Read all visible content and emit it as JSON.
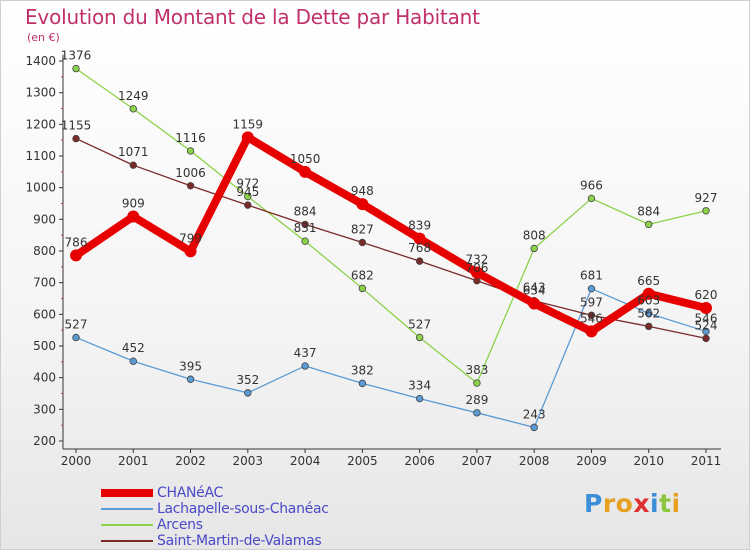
{
  "header": {
    "title": "Evolution du Montant de la Dette par Habitant",
    "unit": "(en €)"
  },
  "colors": {
    "title": "#c0306a",
    "legend_text": "#4a4ac8"
  },
  "logo": {
    "letters": [
      "P",
      "r",
      "o",
      "x",
      "i",
      "t",
      "i"
    ],
    "colors": [
      "#3a8fd8",
      "#e8a020",
      "#e8a020",
      "#e03030",
      "#3a8fd8",
      "#8cc63f",
      "#e8a020"
    ]
  },
  "chart_data": {
    "type": "line",
    "title": "Evolution du Montant de la Dette par Habitant",
    "ylabel": "(en €)",
    "xlabel": "",
    "x": [
      "2000",
      "2001",
      "2002",
      "2003",
      "2004",
      "2005",
      "2006",
      "2007",
      "2008",
      "2009",
      "2010",
      "2011"
    ],
    "yticks": [
      "200",
      "300",
      "400",
      "500",
      "600",
      "700",
      "800",
      "900",
      "1000",
      "1100",
      "1200",
      "1300",
      "1400"
    ],
    "ylim": [
      200,
      1420
    ],
    "grid": false,
    "legend_position": "bottom-left",
    "series": [
      {
        "name": "CHANéAC",
        "color": "#e60000",
        "values": [
          786,
          909,
          799,
          1159,
          1050,
          948,
          839,
          732,
          634,
          546,
          665,
          620
        ],
        "labels": [
          "786",
          "909",
          "799",
          "1159",
          "1050",
          "948",
          "839",
          "732",
          "634",
          "546",
          "665",
          "620"
        ]
      },
      {
        "name": "Lachapelle-sous-Chanéac",
        "color": "#5b9bd5",
        "values": [
          527,
          452,
          395,
          352,
          437,
          382,
          334,
          289,
          243,
          681,
          603,
          546
        ],
        "labels": [
          "527",
          "452",
          "395",
          "352",
          "437",
          "382",
          "334",
          "289",
          "243",
          "681",
          "603",
          "546"
        ]
      },
      {
        "name": "Arcens",
        "color": "#8cd24a",
        "values": [
          1376,
          1249,
          1116,
          972,
          831,
          682,
          527,
          383,
          808,
          966,
          884,
          927
        ],
        "labels": [
          "1376",
          "1249",
          "1116",
          "972",
          "831",
          "682",
          "527",
          "383",
          "808",
          "966",
          "884",
          "927"
        ]
      },
      {
        "name": "Saint-Martin-de-Valamas",
        "color": "#7b2a2a",
        "values": [
          1155,
          1071,
          1006,
          945,
          884,
          827,
          768,
          706,
          643,
          597,
          562,
          524
        ],
        "labels": [
          "1155",
          "1071",
          "1006",
          "945",
          "884",
          "827",
          "768",
          "706",
          "643",
          "597",
          "562",
          "524"
        ]
      }
    ]
  }
}
